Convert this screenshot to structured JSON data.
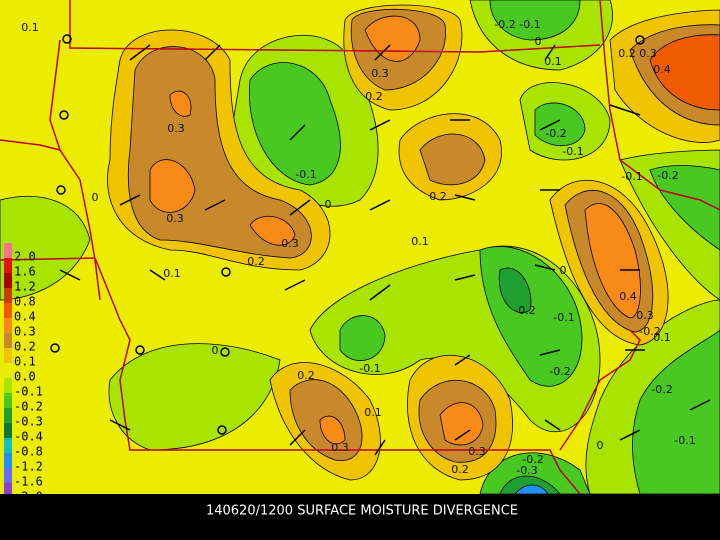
{
  "caption": "140620/1200 SURFACE MOISTURE DIVERGENCE",
  "legend": [
    {
      "label": "2.0",
      "color": "#ff6f8f"
    },
    {
      "label": "1.6",
      "color": "#e01010"
    },
    {
      "label": "1.2",
      "color": "#a80000"
    },
    {
      "label": "0.8",
      "color": "#c83c00"
    },
    {
      "label": "0.4",
      "color": "#f05a00"
    },
    {
      "label": "0.3",
      "color": "#f88a18"
    },
    {
      "label": "0.2",
      "color": "#c8892a"
    },
    {
      "label": "0.1",
      "color": "#f0c400"
    },
    {
      "label": "0.0",
      "color": "#ecec00"
    },
    {
      "label": "-0.1",
      "color": "#a8e400"
    },
    {
      "label": "-0.2",
      "color": "#48c820"
    },
    {
      "label": "-0.3",
      "color": "#20a030"
    },
    {
      "label": "-0.4",
      "color": "#0a7838"
    },
    {
      "label": "-0.8",
      "color": "#10c0c0"
    },
    {
      "label": "-1.2",
      "color": "#2090ff"
    },
    {
      "label": "-1.6",
      "color": "#6868ff"
    },
    {
      "label": "-2.0",
      "color": "#8844cc"
    }
  ],
  "contour_labels": [
    "0.1",
    "0.3",
    "0.2",
    "-0.2",
    "-0.1",
    "0",
    "0.1",
    "0.2",
    "0.3",
    "0.4",
    "0.3",
    "-0.2",
    "-0.1",
    "-0.1",
    "0",
    "0.3",
    "0",
    "0.2",
    "-0.1",
    "-0.2",
    "0.3",
    "0.2",
    "0.1",
    "0.1",
    "0",
    "0.4",
    "-0.2",
    "-0.1",
    "0.3",
    "-0.2",
    "0.1",
    "0",
    "-0.1",
    "0.2",
    "-0.2",
    "0.1",
    "-0.2",
    "0.3",
    "0.3",
    "0.2",
    "-0.2",
    "-0.3",
    "0",
    "-0.1"
  ]
}
